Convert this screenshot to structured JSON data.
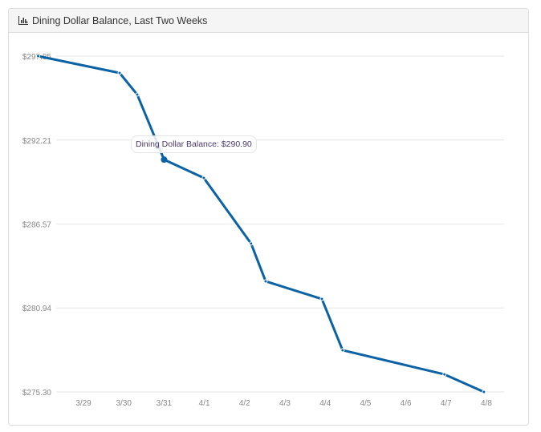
{
  "panel": {
    "title": "Dining Dollar Balance, Last Two Weeks",
    "icon": "bar-chart-icon"
  },
  "tooltip": {
    "text": "Dining Dollar Balance: $290.90"
  },
  "chart_data": {
    "type": "line",
    "title": "Dining Dollar Balance, Last Two Weeks",
    "line_color": "#0b62a4",
    "grid": true,
    "ylim": [
      275.3,
      297.85
    ],
    "yticks": [
      "$297.85",
      "$292.21",
      "$286.57",
      "$280.94",
      "$275.30"
    ],
    "ytick_values": [
      297.85,
      292.21,
      286.57,
      280.94,
      275.3
    ],
    "xticks": [
      "3/29",
      "3/30",
      "3/31",
      "4/1",
      "4/2",
      "4/3",
      "4/4",
      "4/5",
      "4/6",
      "4/7",
      "4/8"
    ],
    "series": [
      {
        "name": "Dining Dollar Balance",
        "points": [
          {
            "x": "3/28 09:00",
            "y": 297.85
          },
          {
            "x": "3/30 09:30",
            "y": 296.72
          },
          {
            "x": "3/30 20:00",
            "y": 295.27
          },
          {
            "x": "3/31 12:00",
            "y": 290.9
          },
          {
            "x": "4/1 11:40",
            "y": 289.67
          },
          {
            "x": "4/2 15:50",
            "y": 285.26
          },
          {
            "x": "4/3 00:30",
            "y": 282.73
          },
          {
            "x": "4/4 10:00",
            "y": 281.54
          },
          {
            "x": "4/4 22:20",
            "y": 278.1
          },
          {
            "x": "4/7 11:00",
            "y": 276.48
          },
          {
            "x": "4/8 10:30",
            "y": 275.3
          }
        ]
      }
    ],
    "highlighted_index": 3
  }
}
